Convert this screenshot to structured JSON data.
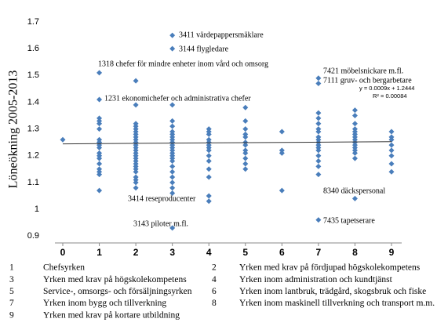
{
  "chart_data": {
    "type": "scatter",
    "y_label": "Löneökning 2005-2013",
    "color": "#4a7ebb",
    "xlim": [
      0,
      9
    ],
    "xticks": [
      0,
      1,
      2,
      3,
      4,
      5,
      6,
      7,
      8,
      9
    ],
    "ylim": [
      0.88,
      1.7
    ],
    "yticks": [
      0.9,
      1,
      1.1,
      1.2,
      1.3,
      1.4,
      1.5,
      1.6,
      1.7
    ],
    "x": [
      0,
      1,
      1,
      1,
      1,
      1,
      1,
      1,
      1,
      1,
      1,
      1,
      1,
      1,
      1,
      1,
      1,
      1,
      1,
      1,
      2,
      2,
      2,
      2,
      2,
      2,
      2,
      2,
      2,
      2,
      2,
      2,
      2,
      2,
      2,
      2,
      2,
      2,
      2,
      2,
      2,
      2,
      2,
      2,
      2,
      3,
      3,
      3,
      3,
      3,
      3,
      3,
      3,
      3,
      3,
      3,
      3,
      3,
      3,
      3,
      3,
      3,
      3,
      3,
      3,
      3,
      3,
      3,
      3,
      4,
      4,
      4,
      4,
      4,
      4,
      4,
      4,
      4,
      4,
      4,
      4,
      4,
      4,
      5,
      5,
      5,
      5,
      5,
      5,
      5,
      5,
      5,
      5,
      5,
      5,
      6,
      6,
      6,
      6,
      7,
      7,
      7,
      7,
      7,
      7,
      7,
      7,
      7,
      7,
      7,
      7,
      7,
      7,
      7,
      7,
      7,
      7,
      8,
      8,
      8,
      8,
      8,
      8,
      8,
      8,
      8,
      8,
      8,
      8,
      8,
      8,
      8,
      9,
      9,
      9,
      9,
      9,
      9,
      9,
      9
    ],
    "values": [
      1.26,
      1.51,
      1.41,
      1.34,
      1.33,
      1.32,
      1.3,
      1.26,
      1.25,
      1.24,
      1.21,
      1.2,
      1.19,
      1.17,
      1.15,
      1.14,
      1.13,
      1.07,
      1.25,
      1.23,
      1.48,
      1.39,
      1.32,
      1.31,
      1.3,
      1.29,
      1.28,
      1.27,
      1.26,
      1.25,
      1.24,
      1.23,
      1.22,
      1.21,
      1.2,
      1.19,
      1.18,
      1.17,
      1.16,
      1.15,
      1.14,
      1.12,
      1.11,
      1.1,
      1.08,
      1.65,
      1.6,
      1.39,
      1.33,
      1.31,
      1.29,
      1.28,
      1.27,
      1.26,
      1.25,
      1.24,
      1.23,
      1.22,
      1.21,
      1.2,
      1.19,
      1.18,
      1.16,
      1.14,
      1.12,
      1.1,
      1.08,
      1.06,
      0.93,
      1.3,
      1.29,
      1.28,
      1.26,
      1.25,
      1.24,
      1.23,
      1.22,
      1.2,
      1.18,
      1.15,
      1.12,
      1.05,
      1.03,
      1.38,
      1.33,
      1.3,
      1.28,
      1.27,
      1.25,
      1.24,
      1.22,
      1.21,
      1.19,
      1.17,
      1.15,
      1.29,
      1.22,
      1.21,
      1.07,
      1.49,
      1.47,
      1.36,
      1.34,
      1.32,
      1.3,
      1.29,
      1.27,
      1.26,
      1.25,
      1.24,
      1.23,
      1.22,
      1.2,
      1.18,
      1.16,
      1.13,
      0.96,
      1.37,
      1.35,
      1.32,
      1.3,
      1.29,
      1.28,
      1.27,
      1.26,
      1.25,
      1.24,
      1.23,
      1.22,
      1.21,
      1.19,
      1.04,
      1.29,
      1.27,
      1.26,
      1.24,
      1.22,
      1.2,
      1.17,
      1.14
    ],
    "trendline": {
      "slope": 0.0009,
      "intercept": 1.2444,
      "equation": "y = 0.0009x + 1.2444",
      "r2": "R² = 0.00084"
    },
    "annotations": [
      "3411 värdepappersmäklare",
      "3144 flygledare",
      "1318 chefer för mindre enheter inom vård och omsorg",
      "1231 ekonomichefer och administrativa chefer",
      "7421 möbelsnickare m.fl.",
      "7111 gruv- och bergarbetare",
      "3414 reseproducenter",
      "3143 piloter m.fl.",
      "8340 däckspersonal",
      "7435 tapetserare"
    ],
    "legend_items": [
      {
        "number": "1",
        "text": "Chefsyrken"
      },
      {
        "number": "2",
        "text": "Yrken med krav på fördjupad högskolekompetens"
      },
      {
        "number": "3",
        "text": "Yrken med krav på högskolekompetens"
      },
      {
        "number": "4",
        "text": "Yrken inom administration och kundtjänst"
      },
      {
        "number": "5",
        "text": "Service-, omsorgs- och försäljningsyrken"
      },
      {
        "number": "6",
        "text": "Yrken inom lantbruk, trädgård, skogsbruk och fiske"
      },
      {
        "number": "7",
        "text": "Yrken inom bygg och tillverkning"
      },
      {
        "number": "8",
        "text": "Yrken inom maskinell tillverkning och transport m.m."
      },
      {
        "number": "9",
        "text": "Yrken med krav på kortare utbildning"
      }
    ]
  }
}
